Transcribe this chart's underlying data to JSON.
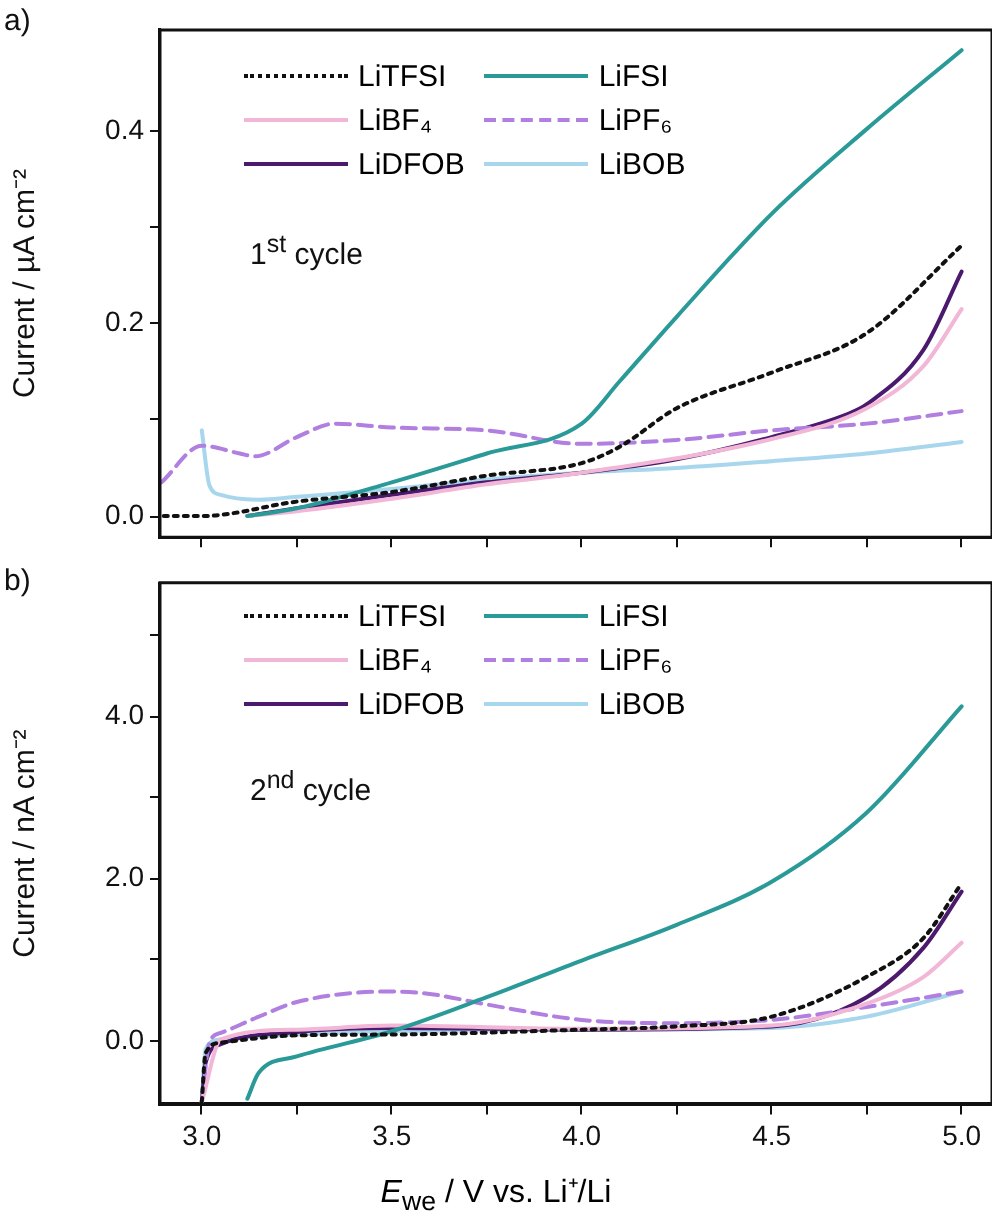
{
  "chart_data": [
    {
      "type": "line",
      "ylabel": "Current / µA cm⁻²",
      "annotations": [
        "a)",
        "1$^{st}$ cycle"
      ],
      "legend": "top left",
      "grid": false,
      "tick_labels": "y",
      "xlim": [
        2.89,
        5.08
      ],
      "xticks": [
        {
          "value": 3,
          "label": null
        },
        {
          "value": 3.25,
          "label": null
        },
        {
          "value": 3.5,
          "label": null
        },
        {
          "value": 3.75,
          "label": null
        },
        {
          "value": 4,
          "label": null
        },
        {
          "value": 4.25,
          "label": null
        },
        {
          "value": 4.5,
          "label": null
        },
        {
          "value": 4.75,
          "label": null
        },
        {
          "value": 5,
          "label": null
        }
      ],
      "ylim": [
        -0.022,
        0.505
      ],
      "yticks": [
        {
          "value": 0,
          "label": "0.0"
        },
        {
          "value": 0.1,
          "label": null
        },
        {
          "value": 0.2,
          "label": "0.2"
        },
        {
          "value": 0.3,
          "label": null
        },
        {
          "value": 0.4,
          "label": "0.4"
        }
      ],
      "series": [
        {
          "name": "LiTFSI",
          "color": "#111111",
          "line_style": "dotted",
          "x": [
            2.9,
            3.0,
            3.25,
            3.5,
            3.75,
            4.0,
            4.1,
            4.25,
            4.5,
            4.75,
            5.0
          ],
          "values": [
            0,
            0,
            0.015,
            0.025,
            0.042,
            0.055,
            0.072,
            0.112,
            0.149,
            0.19,
            0.281
          ]
        },
        {
          "name": "LiFSI",
          "color": "#2a9a98",
          "line_style": "solid",
          "x": [
            3.12,
            3.25,
            3.5,
            3.75,
            4.0,
            4.1,
            4.25,
            4.5,
            4.75,
            5.0
          ],
          "values": [
            0,
            0.008,
            0.035,
            0.065,
            0.096,
            0.14,
            0.207,
            0.314,
            0.402,
            0.484
          ]
        },
        {
          "name": "LiBF₄",
          "color": "#f2b6d6",
          "line_style": "solid",
          "x": [
            3.12,
            3.25,
            3.5,
            3.75,
            4.0,
            4.5,
            4.75,
            4.9,
            5.0
          ],
          "values": [
            0,
            0.005,
            0.018,
            0.033,
            0.045,
            0.08,
            0.112,
            0.156,
            0.215
          ]
        },
        {
          "name": "LiPF₆",
          "color": "#b07fe0",
          "line_style": "dashed",
          "x": [
            2.894,
            3.0,
            3.1,
            3.14,
            3.25,
            3.35,
            3.5,
            3.75,
            4.0,
            4.25,
            4.5,
            4.75,
            5.0
          ],
          "values": [
            0.035,
            0.073,
            0.065,
            0.062,
            0.082,
            0.096,
            0.092,
            0.089,
            0.075,
            0.079,
            0.089,
            0.096,
            0.109
          ]
        },
        {
          "name": "LiDFOB",
          "color": "#4b1a6e",
          "line_style": "solid",
          "x": [
            3.12,
            3.25,
            3.5,
            3.75,
            4.0,
            4.25,
            4.5,
            4.7,
            4.75,
            4.9,
            5.0
          ],
          "values": [
            0,
            0.008,
            0.022,
            0.035,
            0.045,
            0.059,
            0.082,
            0.106,
            0.116,
            0.173,
            0.254
          ]
        },
        {
          "name": "LiBOB",
          "color": "#a8d6ec",
          "line_style": "solid",
          "x": [
            3.0,
            3.02,
            3.05,
            3.15,
            3.25,
            3.5,
            3.75,
            4.0,
            4.25,
            4.5,
            4.75,
            5.0
          ],
          "values": [
            0.089,
            0.032,
            0.022,
            0.017,
            0.02,
            0.028,
            0.038,
            0.045,
            0.05,
            0.057,
            0.065,
            0.077
          ]
        }
      ]
    },
    {
      "type": "line",
      "ylabel": "Current / nA cm⁻²",
      "xlabel": "E$_{we}$ / V vs. Li⁺/Li",
      "annotations": [
        "b)",
        "2$^{nd}$ cycle"
      ],
      "legend": "top left",
      "grid": false,
      "xlim": [
        2.89,
        5.08
      ],
      "xticks": [
        {
          "value": 3,
          "label": "3.0"
        },
        {
          "value": 3.25,
          "label": null
        },
        {
          "value": 3.5,
          "label": "3.5"
        },
        {
          "value": 3.75,
          "label": null
        },
        {
          "value": 4,
          "label": "4.0"
        },
        {
          "value": 4.25,
          "label": null
        },
        {
          "value": 4.5,
          "label": "4.5"
        },
        {
          "value": 4.75,
          "label": null
        },
        {
          "value": 5,
          "label": "5.0"
        }
      ],
      "ylim": [
        -0.78,
        5.64
      ],
      "yticks": [
        {
          "value": 0,
          "label": "0.0"
        },
        {
          "value": 1,
          "label": null
        },
        {
          "value": 2,
          "label": "2.0"
        },
        {
          "value": 3,
          "label": null
        },
        {
          "value": 4,
          "label": "4.0"
        },
        {
          "value": 5,
          "label": null
        }
      ],
      "series": [
        {
          "name": "LiTFSI",
          "color": "#111111",
          "line_style": "dotted",
          "x": [
            3.0,
            3.01,
            3.05,
            3.25,
            3.5,
            4.0,
            4.25,
            4.5,
            4.75,
            4.9,
            5.0
          ],
          "values": [
            -0.75,
            -0.15,
            -0.02,
            0.07,
            0.08,
            0.14,
            0.18,
            0.3,
            0.79,
            1.27,
            1.94
          ]
        },
        {
          "name": "LiFSI",
          "color": "#2a9a98",
          "line_style": "solid",
          "x": [
            3.12,
            3.15,
            3.25,
            3.5,
            3.75,
            4.0,
            4.25,
            4.5,
            4.75,
            5.0
          ],
          "values": [
            -0.71,
            -0.39,
            -0.19,
            0.12,
            0.54,
            0.99,
            1.43,
            1.96,
            2.81,
            4.12
          ]
        },
        {
          "name": "LiBF₄",
          "color": "#f2b6d6",
          "line_style": "solid",
          "x": [
            3.0,
            3.05,
            3.25,
            3.5,
            4.0,
            4.5,
            4.75,
            4.9,
            5.0
          ],
          "values": [
            -0.75,
            0.02,
            0.14,
            0.19,
            0.15,
            0.19,
            0.46,
            0.79,
            1.21
          ]
        },
        {
          "name": "LiPF₆",
          "color": "#b07fe0",
          "line_style": "dashed",
          "x": [
            3.0,
            3.02,
            3.05,
            3.15,
            3.25,
            3.5,
            3.6,
            3.75,
            4.0,
            4.25,
            4.5,
            4.75,
            5.0
          ],
          "values": [
            -0.75,
            -0.02,
            0.1,
            0.3,
            0.48,
            0.61,
            0.58,
            0.45,
            0.26,
            0.22,
            0.26,
            0.42,
            0.61
          ]
        },
        {
          "name": "LiDFOB",
          "color": "#4b1a6e",
          "line_style": "solid",
          "x": [
            3.0,
            3.01,
            3.05,
            3.25,
            3.5,
            4.0,
            4.5,
            4.75,
            4.9,
            5.0
          ],
          "values": [
            -0.75,
            -0.27,
            -0.04,
            0.11,
            0.16,
            0.14,
            0.18,
            0.54,
            1.15,
            1.84
          ]
        },
        {
          "name": "LiBOB",
          "color": "#a8d6ec",
          "line_style": "solid",
          "x": [
            3.0,
            3.01,
            3.05,
            3.25,
            3.5,
            4.0,
            4.5,
            4.75,
            5.0
          ],
          "values": [
            -0.75,
            -0.1,
            0.02,
            0.08,
            0.12,
            0.14,
            0.16,
            0.3,
            0.61
          ]
        }
      ]
    }
  ]
}
